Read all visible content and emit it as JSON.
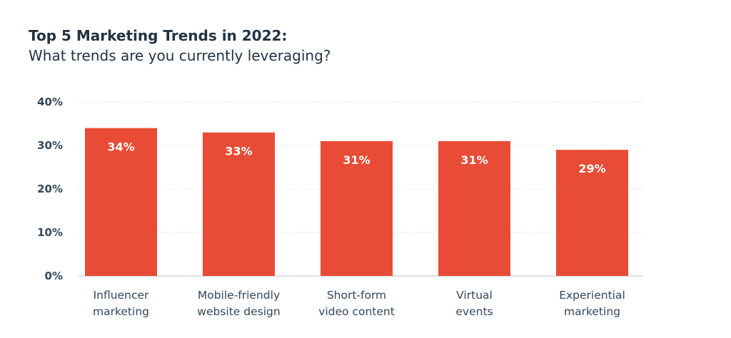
{
  "chart_data": {
    "type": "bar",
    "title": "Top 5 Marketing Trends in 2022:",
    "subtitle": "What trends are you currently leveraging?",
    "categories": [
      [
        "Influencer",
        "marketing"
      ],
      [
        "Mobile-friendly",
        "website design"
      ],
      [
        "Short-form",
        "video content"
      ],
      [
        "Virtual",
        "events"
      ],
      [
        "Experiential",
        "marketing"
      ]
    ],
    "values": [
      34,
      33,
      31,
      31,
      29
    ],
    "data_labels": [
      "34%",
      "33%",
      "31%",
      "31%",
      "29%"
    ],
    "yticks": [
      0,
      10,
      20,
      30,
      40
    ],
    "ytick_labels": [
      "0%",
      "10%",
      "20%",
      "30%",
      "40%"
    ],
    "ylim": [
      0,
      40
    ],
    "xlabel": "",
    "ylabel": "",
    "grid": true,
    "bar_color": "#E84C36"
  }
}
